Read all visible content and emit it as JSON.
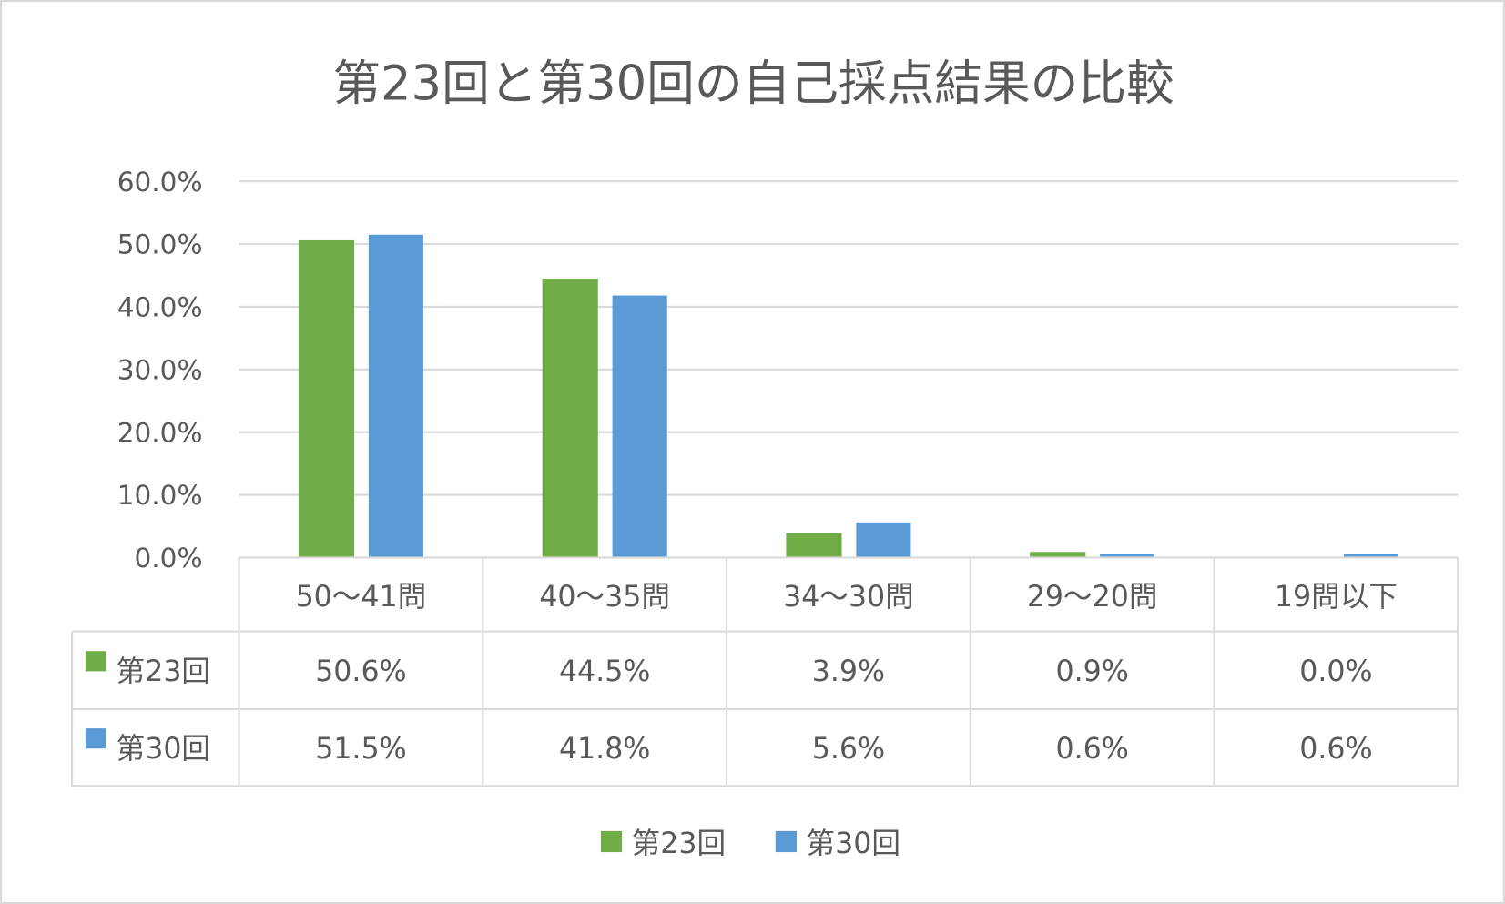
{
  "chart_data": {
    "type": "bar",
    "title": "第23回と第30回の自己採点結果の比較",
    "categories": [
      "50～41問",
      "40～35問",
      "34～30問",
      "29～20問",
      "19問以下"
    ],
    "series": [
      {
        "name": "第23回",
        "color": "#70AD47",
        "values": [
          50.6,
          44.5,
          3.9,
          0.9,
          0.0
        ],
        "labels": [
          "50.6%",
          "44.5%",
          "3.9%",
          "0.9%",
          "0.0%"
        ]
      },
      {
        "name": "第30回",
        "color": "#5B9BD5",
        "values": [
          51.5,
          41.8,
          5.6,
          0.6,
          0.6
        ],
        "labels": [
          "51.5%",
          "41.8%",
          "5.6%",
          "0.6%",
          "0.6%"
        ]
      }
    ],
    "ylim": [
      0,
      60
    ],
    "yticks": [
      "0.0%",
      "10.0%",
      "20.0%",
      "30.0%",
      "40.0%",
      "50.0%",
      "60.0%"
    ],
    "grid": true,
    "data_table": true,
    "legend": "bottom"
  }
}
